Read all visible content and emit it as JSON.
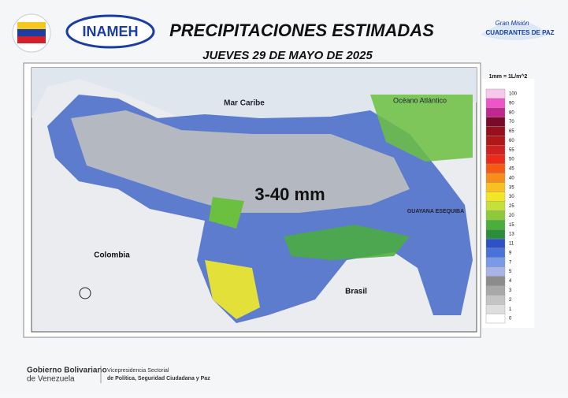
{
  "header": {
    "title": "PRECIPITACIONES ESTIMADAS",
    "subtitle": "JUEVES 29 DE MAYO DE 2025",
    "logo_left": "INAMEH",
    "logo_right_top": "Gran Misión",
    "logo_right": "CUADRANTES DE PAZ"
  },
  "map": {
    "labels": [
      "Mar Caribe",
      "Océano Atlántico",
      "Colombia",
      "Brasil",
      "GUAYANA ESEQUIBA",
      "3-40 mm"
    ]
  },
  "legend": {
    "unit": "1mm = 1L/m^2",
    "items": [
      {
        "label": 100,
        "color": "#f8c8ec"
      },
      {
        "label": 90,
        "color": "#ee55c8"
      },
      {
        "label": 80,
        "color": "#c0288e"
      },
      {
        "label": 70,
        "color": "#7a0a2a"
      },
      {
        "label": 65,
        "color": "#96101e"
      },
      {
        "label": 60,
        "color": "#b01818"
      },
      {
        "label": 55,
        "color": "#d02020"
      },
      {
        "label": 50,
        "color": "#ec2a1a"
      },
      {
        "label": 45,
        "color": "#f45a14"
      },
      {
        "label": 40,
        "color": "#f88c1c"
      },
      {
        "label": 35,
        "color": "#f8c020"
      },
      {
        "label": 30,
        "color": "#f4e626"
      },
      {
        "label": 25,
        "color": "#c6e03a"
      },
      {
        "label": 20,
        "color": "#8cca3a"
      },
      {
        "label": 15,
        "color": "#4aae3a"
      },
      {
        "label": 13,
        "color": "#2a8e3a"
      },
      {
        "label": 11,
        "color": "#3050c8"
      },
      {
        "label": 9,
        "color": "#4a72dc"
      },
      {
        "label": 7,
        "color": "#7a9ae8"
      },
      {
        "label": 5,
        "color": "#a8b4e8"
      },
      {
        "label": 4,
        "color": "#8c8c8c"
      },
      {
        "label": 3,
        "color": "#a8a8a8"
      },
      {
        "label": 2,
        "color": "#c4c4c4"
      },
      {
        "label": 1,
        "color": "#dedede"
      },
      {
        "label": 0,
        "color": "#ffffff"
      }
    ]
  },
  "footer": {
    "gov_line1": "Gobierno Bolivariano",
    "gov_line2": "de Venezuela",
    "vice_line1": "Vicepresidencia Sectorial",
    "vice_line2": "de Política, Seguridad Ciudadana y Paz"
  }
}
